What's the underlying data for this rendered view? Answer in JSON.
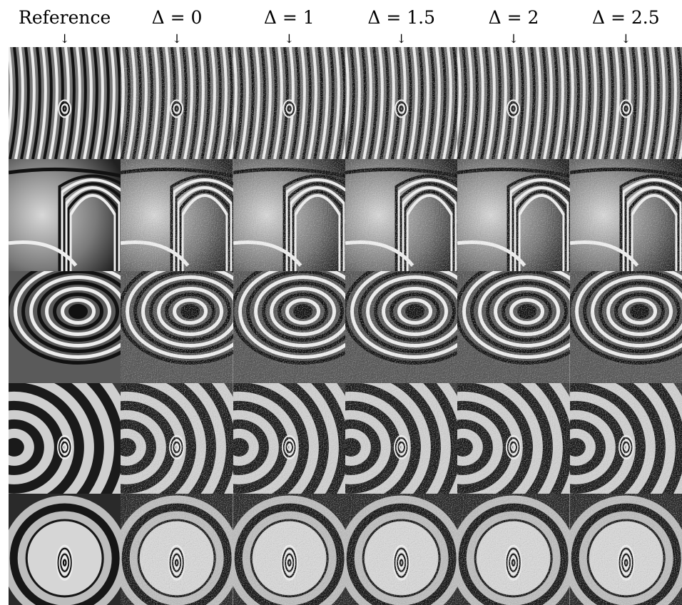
{
  "columns": [
    {
      "label": "Reference",
      "arrow": "↓",
      "noise": 0
    },
    {
      "label": "Δ = 0",
      "arrow": "↓",
      "noise": 0.25
    },
    {
      "label": "Δ = 1",
      "arrow": "↓",
      "noise": 0.45
    },
    {
      "label": "Δ = 1.5",
      "arrow": "↓",
      "noise": 0.6
    },
    {
      "label": "Δ = 2",
      "arrow": "↓",
      "noise": 0.75
    },
    {
      "label": "Δ = 2.5",
      "arrow": "↓",
      "noise": 0.85
    }
  ],
  "rows": [
    {
      "pattern": "vortex-stripes"
    },
    {
      "pattern": "saddle-lobes"
    },
    {
      "pattern": "swirl-vortex"
    },
    {
      "pattern": "rings-with-spot"
    },
    {
      "pattern": "circle-with-ellipse"
    }
  ]
}
